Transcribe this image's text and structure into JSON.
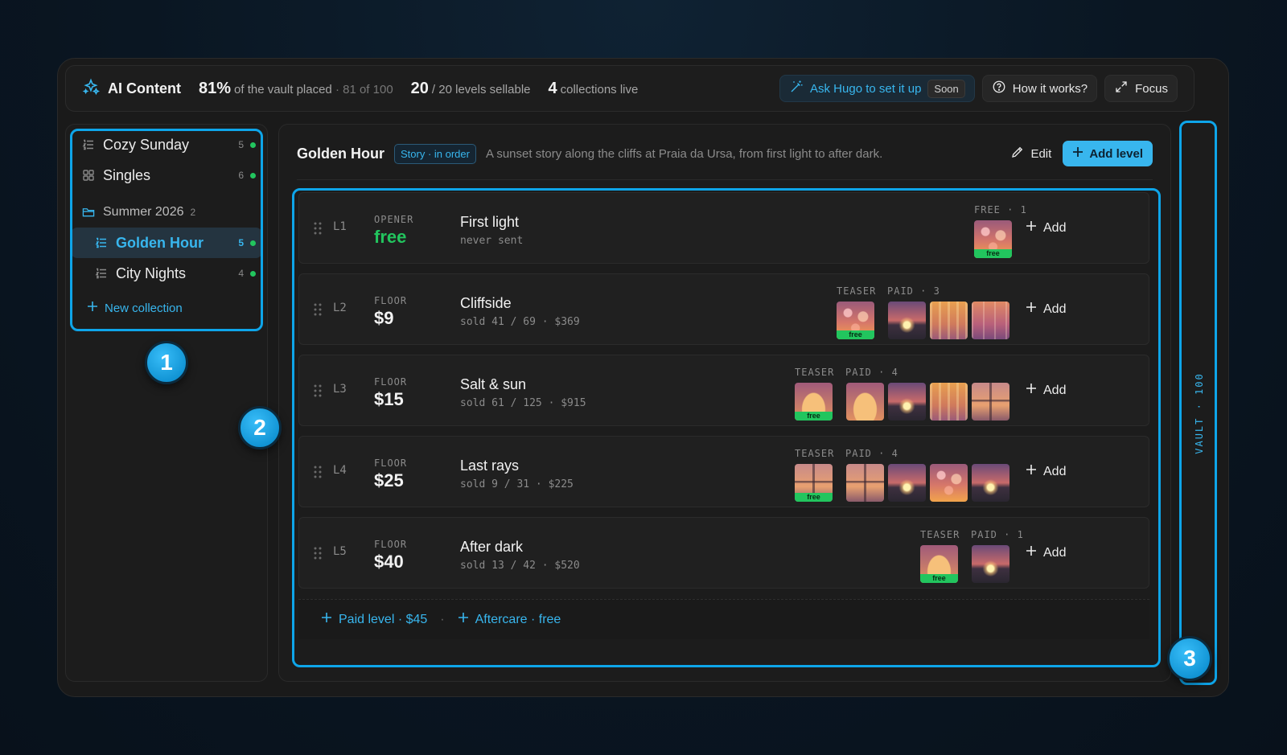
{
  "topbar": {
    "brand": "AI Content",
    "vault_percent": "81%",
    "vault_text": "of the vault placed",
    "vault_count": "· 81 of 100",
    "levels_sellable_num": "20",
    "levels_sellable_text": "/ 20 levels sellable",
    "collections_live_num": "4",
    "collections_live_text": "collections live",
    "ask_label": "Ask Hugo to set it up",
    "soon_label": "Soon",
    "how_label": "How it works?",
    "focus_label": "Focus"
  },
  "sidebar": {
    "collections": [
      {
        "label": "Cozy Sunday",
        "count": "5",
        "icon": "list-ordered-icon"
      },
      {
        "label": "Singles",
        "count": "6",
        "icon": "grid-icon"
      }
    ],
    "folder": {
      "label": "Summer 2026",
      "count": "2",
      "icon": "folder-icon"
    },
    "folder_items": [
      {
        "label": "Golden Hour",
        "count": "5",
        "active": true
      },
      {
        "label": "City Nights",
        "count": "4",
        "active": false
      }
    ],
    "new_collection": "New collection"
  },
  "main": {
    "title": "Golden Hour",
    "badge": "Story · in order",
    "description": "A sunset story along the cliffs at Praia da Ursa, from first light to after dark.",
    "edit_label": "Edit",
    "add_level_label": "Add level",
    "levels": [
      {
        "id": "L1",
        "type": "OPENER",
        "price": "free",
        "name": "First light",
        "sold": "never sent",
        "teaser_label": "",
        "paid_label": "FREE · 1",
        "add": "Add"
      },
      {
        "id": "L2",
        "type": "FLOOR",
        "price": "$9",
        "name": "Cliffside",
        "sold": "sold 41 / 69 · $369",
        "teaser_label": "TEASER",
        "paid_label": "PAID · 3",
        "add": "Add"
      },
      {
        "id": "L3",
        "type": "FLOOR",
        "price": "$15",
        "name": "Salt & sun",
        "sold": "sold 61 / 125 · $915",
        "teaser_label": "TEASER",
        "paid_label": "PAID · 4",
        "add": "Add"
      },
      {
        "id": "L4",
        "type": "FLOOR",
        "price": "$25",
        "name": "Last rays",
        "sold": "sold 9 / 31 · $225",
        "teaser_label": "TEASER",
        "paid_label": "PAID · 4",
        "add": "Add"
      },
      {
        "id": "L5",
        "type": "FLOOR",
        "price": "$40",
        "name": "After dark",
        "sold": "sold 13 / 42 · $520",
        "teaser_label": "TEASER",
        "paid_label": "PAID · 1",
        "add": "Add"
      }
    ],
    "thumb_tag": "free",
    "footer_paid": "Paid level · $45",
    "footer_sep": "·",
    "footer_aftercare": "Aftercare · free"
  },
  "vault_rail": {
    "label": "VAULT · 100"
  },
  "callouts": [
    "1",
    "2",
    "3"
  ],
  "colors": {
    "accent": "#38b6ee",
    "green": "#22c55e",
    "callout": "#0ea5e9"
  }
}
